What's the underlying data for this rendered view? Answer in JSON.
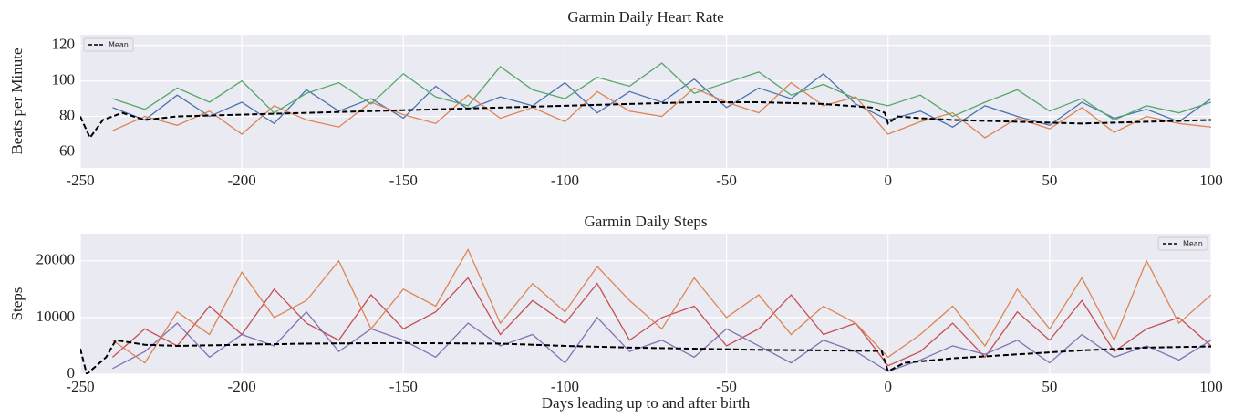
{
  "chart_data": [
    {
      "type": "line",
      "title": "Garmin Daily Heart Rate",
      "ylabel": "Beats per Minute",
      "xlim": [
        -250,
        100
      ],
      "xticks": [
        -250,
        -200,
        -150,
        -100,
        -50,
        0,
        50,
        100
      ],
      "ylim": [
        51,
        126
      ],
      "yticks": [
        60,
        80,
        100,
        120
      ],
      "grid": true,
      "legend": "upper left",
      "x": [
        -240,
        -230,
        -220,
        -210,
        -200,
        -190,
        -180,
        -170,
        -160,
        -150,
        -140,
        -130,
        -120,
        -110,
        -100,
        -90,
        -80,
        -70,
        -60,
        -50,
        -40,
        -30,
        -20,
        -10,
        0,
        10,
        20,
        30,
        40,
        50,
        60,
        70,
        80,
        90,
        100
      ],
      "series": [
        {
          "color": "#4c72b0",
          "values": [
            85,
            78,
            92,
            80,
            88,
            76,
            95,
            83,
            90,
            79,
            97,
            84,
            91,
            86,
            99,
            82,
            94,
            88,
            101,
            85,
            96,
            90,
            104,
            87,
            78,
            83,
            74,
            86,
            80,
            75,
            88,
            79,
            84,
            77,
            90
          ]
        },
        {
          "color": "#dd8452",
          "values": [
            72,
            80,
            75,
            83,
            70,
            86,
            78,
            74,
            88,
            81,
            76,
            92,
            79,
            85,
            77,
            94,
            83,
            80,
            96,
            88,
            82,
            99,
            86,
            91,
            70,
            77,
            82,
            68,
            79,
            73,
            85,
            71,
            80,
            76,
            74
          ]
        },
        {
          "color": "#55a868",
          "values": [
            90,
            84,
            96,
            88,
            100,
            82,
            93,
            99,
            87,
            104,
            91,
            86,
            108,
            95,
            90,
            102,
            97,
            110,
            93,
            99,
            105,
            92,
            98,
            90,
            86,
            92,
            80,
            88,
            95,
            83,
            90,
            78,
            86,
            82,
            88
          ]
        },
        {
          "name": "Mean",
          "color": "#000000",
          "dashed": true,
          "x": [
            -250,
            -247,
            -243,
            -240,
            -237,
            -230,
            -220,
            -200,
            -180,
            -160,
            -140,
            -120,
            -100,
            -80,
            -60,
            -40,
            -20,
            -5,
            -1,
            0,
            3,
            10,
            20,
            40,
            60,
            80,
            100
          ],
          "values": [
            80,
            68,
            78,
            80,
            82,
            78,
            80,
            81,
            82,
            83,
            84,
            85,
            86,
            87,
            88,
            88,
            87,
            85,
            82,
            76,
            80,
            79,
            78,
            77,
            76,
            77,
            78
          ]
        }
      ]
    },
    {
      "type": "line",
      "title": "Garmin Daily Steps",
      "ylabel": "Steps",
      "xlabel": "Days leading up to and after birth",
      "xlim": [
        -250,
        100
      ],
      "xticks": [
        -250,
        -200,
        -150,
        -100,
        -50,
        0,
        50,
        100
      ],
      "ylim": [
        0,
        24800
      ],
      "yticks": [
        0,
        10000,
        20000
      ],
      "grid": true,
      "legend": "upper right",
      "x": [
        -240,
        -230,
        -220,
        -210,
        -200,
        -190,
        -180,
        -170,
        -160,
        -150,
        -140,
        -130,
        -120,
        -110,
        -100,
        -90,
        -80,
        -70,
        -60,
        -50,
        -40,
        -30,
        -20,
        -10,
        0,
        10,
        20,
        30,
        40,
        50,
        60,
        70,
        80,
        90,
        100
      ],
      "series": [
        {
          "color": "#c44e52",
          "values": [
            3000,
            8000,
            5000,
            12000,
            7000,
            15000,
            9000,
            6000,
            14000,
            8000,
            11000,
            17000,
            7000,
            13000,
            9000,
            16000,
            6000,
            10000,
            12000,
            5000,
            8000,
            14000,
            7000,
            9000,
            1500,
            4000,
            9000,
            3000,
            11000,
            6000,
            13000,
            4000,
            8000,
            10000,
            5000
          ]
        },
        {
          "color": "#8172b3",
          "values": [
            1000,
            4000,
            9000,
            3000,
            7000,
            5000,
            11000,
            4000,
            8000,
            6000,
            3000,
            9000,
            5000,
            7000,
            2000,
            10000,
            4000,
            6000,
            3000,
            8000,
            5000,
            2000,
            6000,
            4000,
            500,
            2500,
            5000,
            3500,
            6000,
            2000,
            7000,
            3000,
            5000,
            2500,
            6000
          ]
        },
        {
          "color": "#dd8452",
          "values": [
            6000,
            2000,
            11000,
            7000,
            18000,
            10000,
            13000,
            20000,
            8000,
            15000,
            12000,
            22000,
            9000,
            16000,
            11000,
            19000,
            13000,
            8000,
            17000,
            10000,
            14000,
            7000,
            12000,
            9000,
            3000,
            7000,
            12000,
            5000,
            15000,
            8000,
            17000,
            6000,
            20000,
            9000,
            14000
          ]
        },
        {
          "name": "Mean",
          "color": "#000000",
          "dashed": true,
          "x": [
            -250,
            -248,
            -245,
            -242,
            -239,
            -230,
            -220,
            -200,
            -180,
            -150,
            -120,
            -100,
            -80,
            -60,
            -40,
            -20,
            -2,
            0,
            5,
            20,
            40,
            60,
            80,
            100
          ],
          "values": [
            4500,
            0,
            1500,
            3000,
            6000,
            5200,
            5000,
            5200,
            5400,
            5500,
            5400,
            5000,
            4700,
            4500,
            4300,
            4200,
            4100,
            500,
            2000,
            2800,
            3500,
            4200,
            4700,
            4900
          ]
        }
      ]
    }
  ]
}
